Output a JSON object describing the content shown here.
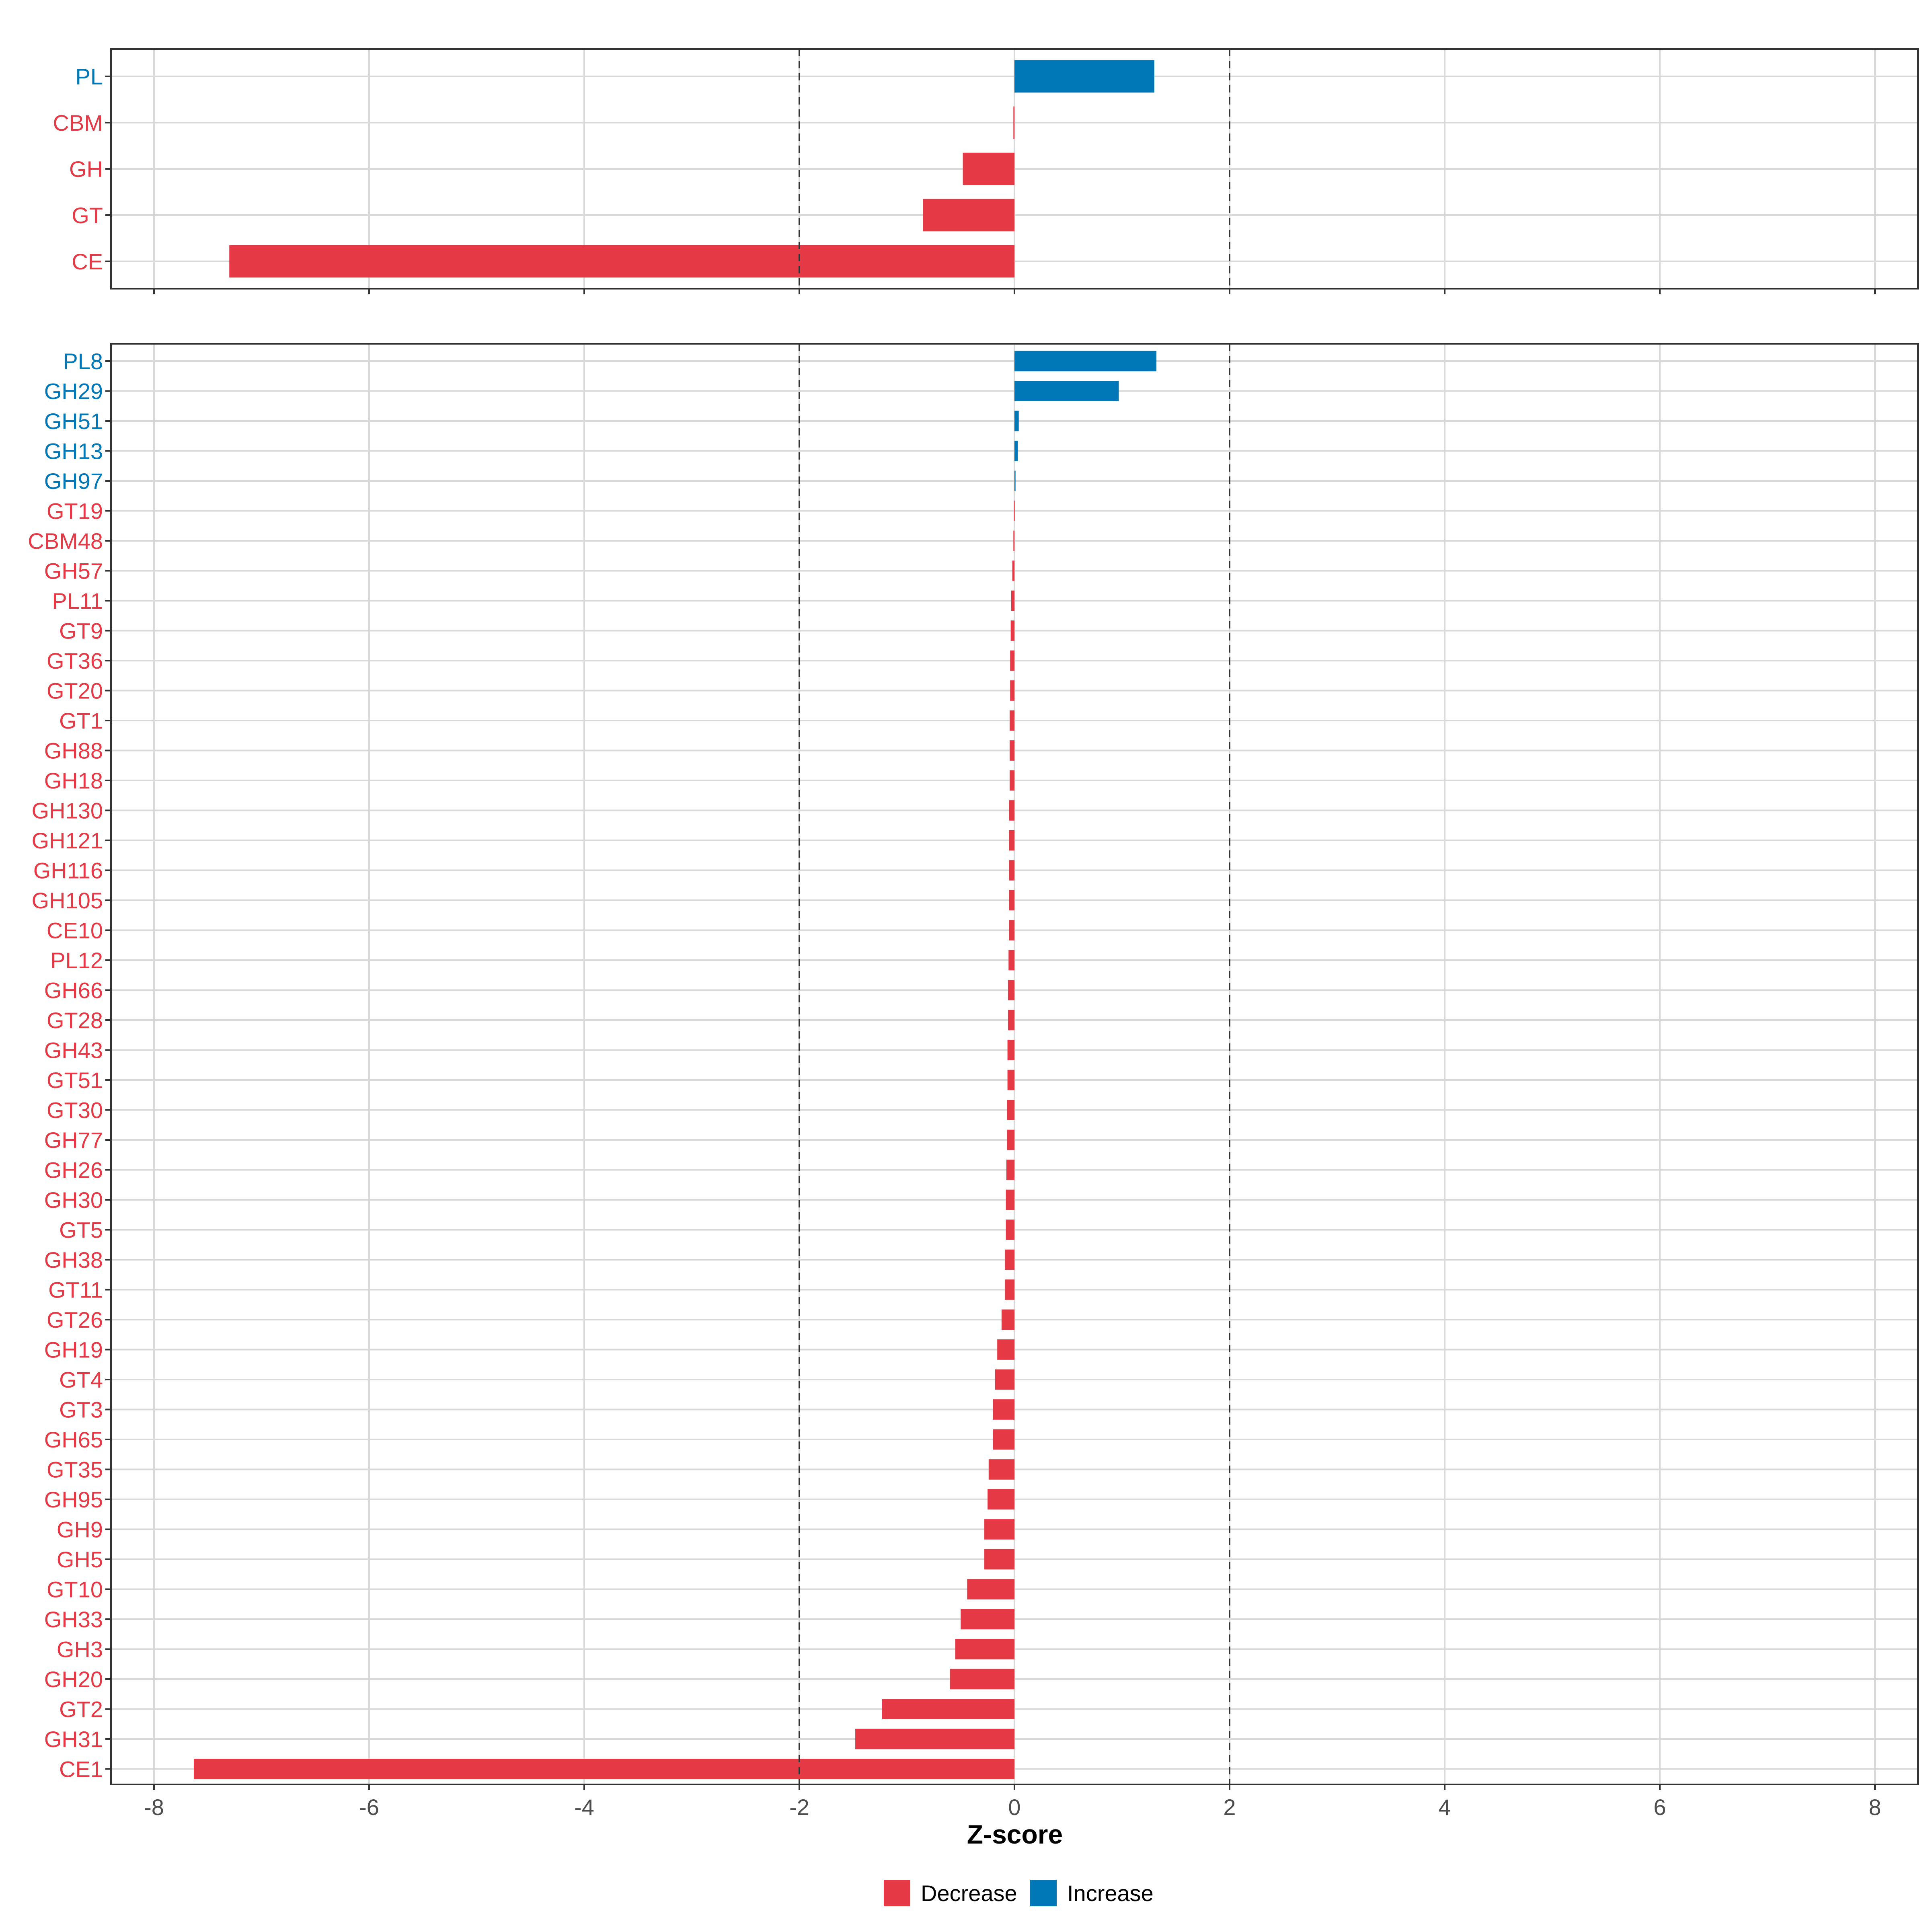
{
  "colors": {
    "Decrease": "#E63946",
    "Increase": "#0077B6",
    "grid": "#D9D9D9",
    "panel_border": "#333333",
    "ref_line": "#333333"
  },
  "chart_data": [
    {
      "type": "bar",
      "orientation": "horizontal",
      "panel": "top",
      "categories": [
        "PL",
        "CBM",
        "GH",
        "GT",
        "CE"
      ],
      "values": [
        1.3,
        -0.01,
        -0.48,
        -0.85,
        -7.3
      ],
      "direction": [
        "Increase",
        "Decrease",
        "Decrease",
        "Decrease",
        "Decrease"
      ],
      "xlim": [
        -8.4,
        8.4
      ],
      "reference_lines": [
        -2,
        2
      ],
      "grid": true
    },
    {
      "type": "bar",
      "orientation": "horizontal",
      "panel": "bottom",
      "categories": [
        "PL8",
        "GH29",
        "GH51",
        "GH13",
        "GH97",
        "GT19",
        "CBM48",
        "GH57",
        "PL11",
        "GT9",
        "GT36",
        "GT20",
        "GT1",
        "GH88",
        "GH18",
        "GH130",
        "GH121",
        "GH116",
        "GH105",
        "CE10",
        "PL12",
        "GH66",
        "GT28",
        "GH43",
        "GT51",
        "GT30",
        "GH77",
        "GH26",
        "GH30",
        "GT5",
        "GH38",
        "GT11",
        "GT26",
        "GH19",
        "GT4",
        "GT3",
        "GH65",
        "GT35",
        "GH95",
        "GH9",
        "GH5",
        "GT10",
        "GH33",
        "GH3",
        "GH20",
        "GT2",
        "GH31",
        "CE1"
      ],
      "values": [
        1.32,
        0.97,
        0.04,
        0.03,
        0.01,
        -0.005,
        -0.01,
        -0.02,
        -0.03,
        -0.035,
        -0.04,
        -0.04,
        -0.045,
        -0.045,
        -0.045,
        -0.05,
        -0.05,
        -0.05,
        -0.05,
        -0.05,
        -0.055,
        -0.06,
        -0.06,
        -0.065,
        -0.065,
        -0.07,
        -0.07,
        -0.075,
        -0.08,
        -0.08,
        -0.09,
        -0.09,
        -0.12,
        -0.16,
        -0.18,
        -0.2,
        -0.2,
        -0.24,
        -0.25,
        -0.28,
        -0.28,
        -0.44,
        -0.5,
        -0.55,
        -0.6,
        -1.23,
        -1.48,
        -7.63
      ],
      "direction": [
        "Increase",
        "Increase",
        "Increase",
        "Increase",
        "Increase",
        "Decrease",
        "Decrease",
        "Decrease",
        "Decrease",
        "Decrease",
        "Decrease",
        "Decrease",
        "Decrease",
        "Decrease",
        "Decrease",
        "Decrease",
        "Decrease",
        "Decrease",
        "Decrease",
        "Decrease",
        "Decrease",
        "Decrease",
        "Decrease",
        "Decrease",
        "Decrease",
        "Decrease",
        "Decrease",
        "Decrease",
        "Decrease",
        "Decrease",
        "Decrease",
        "Decrease",
        "Decrease",
        "Decrease",
        "Decrease",
        "Decrease",
        "Decrease",
        "Decrease",
        "Decrease",
        "Decrease",
        "Decrease",
        "Decrease",
        "Decrease",
        "Decrease",
        "Decrease",
        "Decrease",
        "Decrease",
        "Decrease"
      ],
      "xlim": [
        -8.4,
        8.4
      ],
      "reference_lines": [
        -2,
        2
      ],
      "grid": true,
      "x_ticks": [
        -8,
        -6,
        -4,
        -2,
        0,
        2,
        4,
        6,
        8
      ],
      "x_tick_labels": [
        "-8",
        "-6",
        "-4",
        "-2",
        "0",
        "2",
        "4",
        "6",
        "8"
      ],
      "xlabel": "Z-score"
    }
  ],
  "legend": {
    "placement": "bottom",
    "items": [
      {
        "label": "Decrease",
        "color_key": "Decrease"
      },
      {
        "label": "Increase",
        "color_key": "Increase"
      }
    ]
  }
}
